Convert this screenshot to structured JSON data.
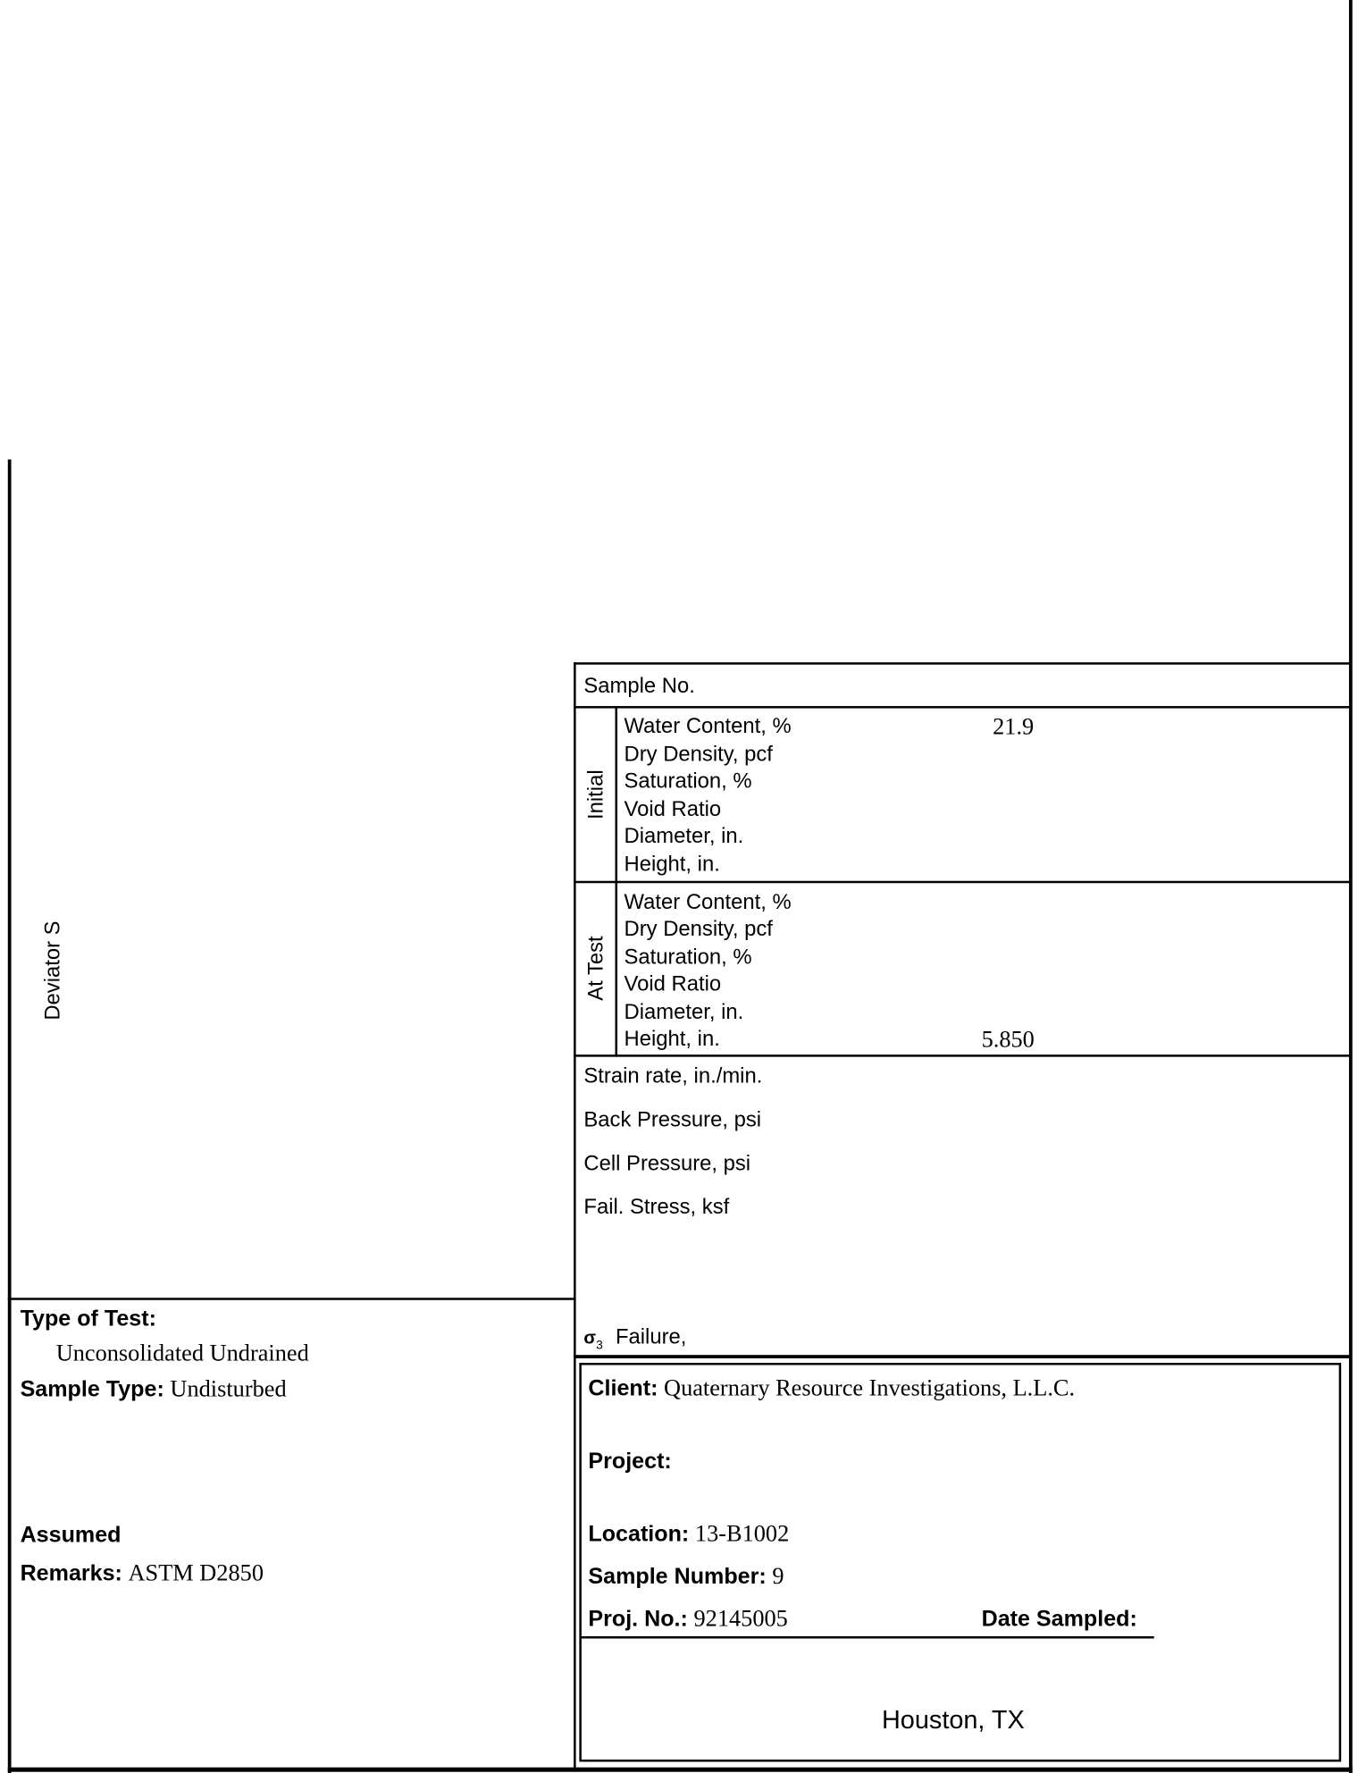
{
  "axis": {
    "ylabel": "Deviator S"
  },
  "table": {
    "sample_no_label": "Sample No.",
    "initial": {
      "label": "Initial",
      "rows": [
        {
          "label": "Water Content, %",
          "value": "21.9"
        },
        {
          "label": "Dry Density, pcf",
          "value": ""
        },
        {
          "label": "Saturation, %",
          "value": ""
        },
        {
          "label": "Void Ratio",
          "value": ""
        },
        {
          "label": "Diameter, in.",
          "value": ""
        },
        {
          "label": "Height, in.",
          "value": ""
        }
      ]
    },
    "at_test": {
      "label": "At Test",
      "rows": [
        {
          "label": "Water Content, %",
          "value": ""
        },
        {
          "label": "Dry Density, pcf",
          "value": ""
        },
        {
          "label": "Saturation, %",
          "value": ""
        },
        {
          "label": "Void Ratio",
          "value": ""
        },
        {
          "label": "Diameter, in.",
          "value": ""
        },
        {
          "label": "Height, in.",
          "value": "5.850"
        }
      ]
    },
    "params": [
      "Strain rate, in./min.",
      "Back Pressure, psi",
      "Cell Pressure, psi",
      "Fail. Stress, ksf"
    ],
    "sigma_symbol": "σ",
    "sigma_sub": "3",
    "sigma_label": "Failure,"
  },
  "left_info": {
    "type_of_test_label": "Type of Test:",
    "type_of_test_value": "Unconsolidated Undrained",
    "sample_type_label": "Sample Type:",
    "sample_type_value": "Undisturbed",
    "assumed_label": "Assumed",
    "remarks_label": "Remarks:",
    "remarks_value": "ASTM D2850"
  },
  "client_box": {
    "client_label": "Client:",
    "client_value": "Quaternary Resource Investigations, L.L.C.",
    "project_label": "Project:",
    "location_label": "Location:",
    "location_value": "13-B1002",
    "sample_number_label": "Sample Number:",
    "sample_number_value": "9",
    "proj_no_label": "Proj. No.:",
    "proj_no_value": "92145005",
    "date_sampled_label": "Date Sampled:",
    "city": "Houston, TX"
  }
}
